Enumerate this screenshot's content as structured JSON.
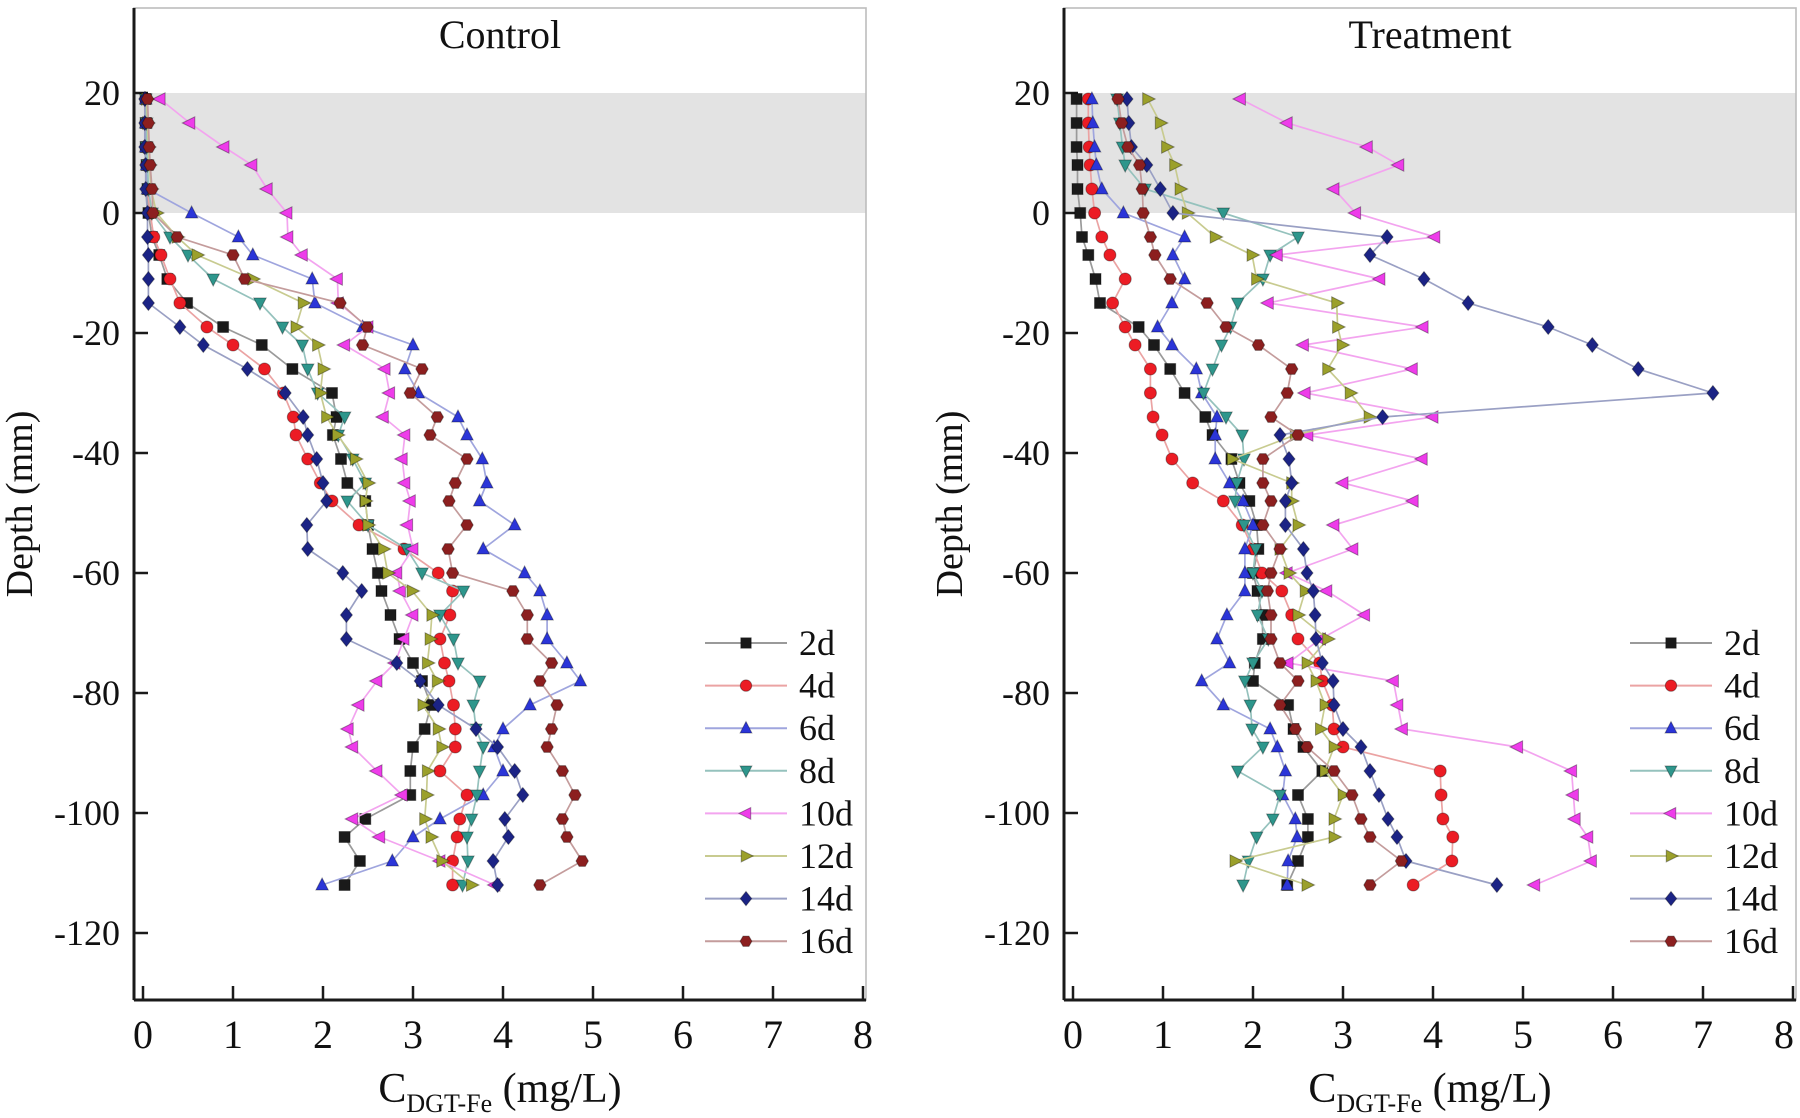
{
  "figure": {
    "background": "#ffffff",
    "band_color": "#e3e3e3",
    "spine_color": "#1a1a1a",
    "frame_color": "#bdbdbd",
    "text_color": "#111111"
  },
  "chart_data": [
    {
      "type": "line",
      "title": "Control",
      "ylabel": "Depth (mm)",
      "xlabel": {
        "main": "C",
        "sub": "DGT-Fe",
        "unit": " (mg/L)"
      },
      "xlim": [
        -0.1,
        8.1
      ],
      "ylim": [
        -131,
        34
      ],
      "x_ticks": [
        0,
        1,
        2,
        3,
        4,
        5,
        6,
        7,
        8
      ],
      "y_ticks": [
        20,
        0,
        -20,
        -40,
        -60,
        -80,
        -100,
        -120
      ],
      "grid": false,
      "legend_position": "lower right",
      "shaded_band": {
        "depth_from": 0,
        "depth_to": 20
      },
      "depths": [
        19,
        15,
        11,
        8,
        4,
        0,
        -4,
        -7,
        -11,
        -15,
        -19,
        -22,
        -26,
        -30,
        -34,
        -37,
        -41,
        -45,
        -48,
        -52,
        -56,
        -60,
        -63,
        -67,
        -71,
        -75,
        -78,
        -82,
        -86,
        -89,
        -93,
        -97,
        -101,
        -104,
        -108,
        -112
      ],
      "series": [
        {
          "name": "2d",
          "marker": "square",
          "color": "#1a1a1a",
          "line_color": "#9a9a9a",
          "values": [
            0.03,
            0.03,
            0.03,
            0.04,
            0.05,
            0.06,
            0.1,
            0.18,
            0.27,
            0.49,
            0.89,
            1.32,
            1.66,
            2.1,
            2.15,
            2.11,
            2.2,
            2.27,
            2.47,
            2.5,
            2.55,
            2.61,
            2.65,
            2.75,
            2.85,
            3.0,
            3.1,
            3.2,
            3.13,
            3.0,
            2.97,
            2.97,
            2.47,
            2.24,
            2.41,
            2.24
          ]
        },
        {
          "name": "4d",
          "marker": "circle",
          "color": "#ec1c24",
          "line_color": "#eba3a3",
          "values": [
            0.03,
            0.03,
            0.04,
            0.04,
            0.05,
            0.08,
            0.12,
            0.2,
            0.3,
            0.41,
            0.71,
            1.0,
            1.35,
            1.56,
            1.67,
            1.7,
            1.83,
            1.97,
            2.1,
            2.4,
            2.9,
            3.28,
            3.44,
            3.41,
            3.3,
            3.35,
            3.4,
            3.45,
            3.47,
            3.47,
            3.3,
            3.6,
            3.52,
            3.49,
            3.44,
            3.44
          ]
        },
        {
          "name": "6d",
          "marker": "triangle-up",
          "color": "#2b35d8",
          "line_color": "#9fa5de",
          "values": [
            0.03,
            0.03,
            0.03,
            0.04,
            0.05,
            0.54,
            1.06,
            1.22,
            1.88,
            1.91,
            2.44,
            3.0,
            2.91,
            3.06,
            3.5,
            3.6,
            3.77,
            3.82,
            3.74,
            4.13,
            3.78,
            4.24,
            4.41,
            4.49,
            4.49,
            4.71,
            4.86,
            4.3,
            4.0,
            3.9,
            4.0,
            3.78,
            3.3,
            3.0,
            2.77,
            1.99
          ]
        },
        {
          "name": "8d",
          "marker": "triangle-down",
          "color": "#2e968c",
          "line_color": "#95c2bd",
          "values": [
            0.03,
            0.04,
            0.04,
            0.05,
            0.06,
            0.1,
            0.3,
            0.5,
            0.78,
            1.3,
            1.55,
            1.77,
            1.83,
            1.94,
            2.24,
            2.17,
            2.33,
            2.47,
            2.27,
            2.5,
            2.93,
            3.1,
            3.56,
            3.3,
            3.45,
            3.5,
            3.74,
            3.67,
            3.7,
            3.78,
            3.74,
            3.71,
            3.65,
            3.6,
            3.61,
            3.55
          ]
        },
        {
          "name": "10d",
          "marker": "triangle-left",
          "color": "#ee3cea",
          "line_color": "#f3a4ef",
          "values": [
            0.19,
            0.52,
            0.9,
            1.21,
            1.38,
            1.6,
            1.61,
            1.77,
            2.16,
            2.17,
            2.5,
            2.24,
            2.69,
            2.74,
            2.67,
            2.91,
            2.88,
            2.91,
            2.97,
            2.94,
            3.0,
            2.82,
            2.86,
            3.0,
            2.9,
            2.8,
            2.6,
            2.4,
            2.28,
            2.33,
            2.6,
            2.88,
            2.33,
            2.63,
            3.3,
            3.91
          ]
        },
        {
          "name": "12d",
          "marker": "triangle-right",
          "color": "#9ba02b",
          "line_color": "#c8cb90",
          "values": [
            0.04,
            0.05,
            0.06,
            0.07,
            0.09,
            0.15,
            0.38,
            0.6,
            1.22,
            1.78,
            1.7,
            1.94,
            2.0,
            1.97,
            2.04,
            2.16,
            2.36,
            2.5,
            2.47,
            2.5,
            2.67,
            2.72,
            2.99,
            3.21,
            3.19,
            3.16,
            3.27,
            3.11,
            3.28,
            3.32,
            3.16,
            3.15,
            3.13,
            3.2,
            3.32,
            3.65
          ]
        },
        {
          "name": "14d",
          "marker": "diamond",
          "color": "#1b2385",
          "line_color": "#9aa0c4",
          "values": [
            0.02,
            0.02,
            0.02,
            0.03,
            0.03,
            0.05,
            0.05,
            0.06,
            0.06,
            0.06,
            0.41,
            0.67,
            1.16,
            1.58,
            1.78,
            1.83,
            1.93,
            2.0,
            2.04,
            1.82,
            1.83,
            2.22,
            2.43,
            2.26,
            2.26,
            2.82,
            3.08,
            3.28,
            3.7,
            3.94,
            4.13,
            4.22,
            4.02,
            4.06,
            3.89,
            3.94
          ]
        },
        {
          "name": "16d",
          "marker": "hexagon",
          "color": "#8c1f1f",
          "line_color": "#c49c9c",
          "values": [
            0.05,
            0.06,
            0.07,
            0.08,
            0.1,
            0.11,
            0.38,
            1.0,
            1.13,
            2.19,
            2.49,
            2.44,
            3.1,
            2.97,
            3.27,
            3.19,
            3.6,
            3.47,
            3.4,
            3.6,
            3.39,
            3.44,
            4.11,
            4.27,
            4.27,
            4.54,
            4.41,
            4.6,
            4.54,
            4.49,
            4.66,
            4.8,
            4.66,
            4.71,
            4.88,
            4.41
          ]
        }
      ]
    },
    {
      "type": "line",
      "title": "Treatment",
      "ylabel": "Depth (mm)",
      "xlabel": {
        "main": "C",
        "sub": "DGT-Fe",
        "unit": " (mg/L)"
      },
      "xlim": [
        -0.1,
        8.1
      ],
      "ylim": [
        -131,
        34
      ],
      "x_ticks": [
        0,
        1,
        2,
        3,
        4,
        5,
        6,
        7,
        8
      ],
      "y_ticks": [
        20,
        0,
        -20,
        -40,
        -60,
        -80,
        -100,
        -120
      ],
      "grid": false,
      "legend_position": "lower right",
      "shaded_band": {
        "depth_from": 0,
        "depth_to": 20
      },
      "depths": [
        19,
        15,
        11,
        8,
        4,
        0,
        -4,
        -7,
        -11,
        -15,
        -19,
        -22,
        -26,
        -30,
        -34,
        -37,
        -41,
        -45,
        -48,
        -52,
        -56,
        -60,
        -63,
        -67,
        -71,
        -75,
        -78,
        -82,
        -86,
        -89,
        -93,
        -97,
        -101,
        -104,
        -108,
        -112
      ],
      "series": [
        {
          "name": "2d",
          "marker": "square",
          "color": "#1a1a1a",
          "line_color": "#9a9a9a",
          "values": [
            0.04,
            0.04,
            0.04,
            0.05,
            0.05,
            0.08,
            0.1,
            0.17,
            0.25,
            0.3,
            0.73,
            0.9,
            1.08,
            1.24,
            1.47,
            1.55,
            1.76,
            1.85,
            1.96,
            2.04,
            2.06,
            2.0,
            2.05,
            2.1,
            2.11,
            2.02,
            2.0,
            2.39,
            2.45,
            2.56,
            2.77,
            2.5,
            2.61,
            2.61,
            2.5,
            2.38
          ]
        },
        {
          "name": "4d",
          "marker": "circle",
          "color": "#ec1c24",
          "line_color": "#eba3a3",
          "values": [
            0.17,
            0.17,
            0.18,
            0.19,
            0.21,
            0.24,
            0.32,
            0.41,
            0.58,
            0.44,
            0.58,
            0.69,
            0.86,
            0.86,
            0.89,
            0.99,
            1.1,
            1.33,
            1.67,
            1.88,
            2.0,
            2.1,
            2.32,
            2.43,
            2.5,
            2.74,
            2.77,
            2.88,
            2.9,
            3.0,
            4.08,
            4.09,
            4.11,
            4.22,
            4.21,
            3.78
          ]
        },
        {
          "name": "6d",
          "marker": "triangle-up",
          "color": "#2b35d8",
          "line_color": "#9fa5de",
          "values": [
            0.21,
            0.22,
            0.24,
            0.26,
            0.32,
            0.56,
            1.24,
            1.11,
            1.24,
            1.1,
            0.94,
            1.1,
            1.37,
            1.43,
            1.6,
            1.58,
            1.58,
            1.74,
            1.89,
            2.0,
            1.91,
            1.91,
            1.91,
            1.71,
            1.6,
            1.74,
            1.43,
            1.67,
            2.19,
            2.27,
            2.36,
            2.33,
            2.47,
            2.49,
            2.39,
            2.38
          ]
        },
        {
          "name": "8d",
          "marker": "triangle-down",
          "color": "#2e968c",
          "line_color": "#95c2bd",
          "values": [
            0.49,
            0.52,
            0.55,
            0.58,
            0.8,
            1.67,
            2.5,
            2.19,
            2.11,
            1.83,
            1.75,
            1.65,
            1.55,
            1.45,
            1.7,
            1.88,
            1.9,
            1.82,
            1.8,
            1.9,
            2.03,
            2.0,
            2.1,
            2.05,
            2.17,
            2.0,
            1.91,
            1.97,
            1.99,
            2.11,
            1.83,
            2.3,
            2.22,
            2.04,
            1.95,
            1.89
          ]
        },
        {
          "name": "10d",
          "marker": "triangle-left",
          "color": "#ee3cea",
          "line_color": "#f3a4ef",
          "values": [
            1.86,
            2.38,
            3.27,
            3.62,
            2.9,
            3.14,
            4.02,
            2.27,
            3.41,
            2.17,
            3.89,
            2.56,
            3.77,
            2.58,
            4.0,
            2.61,
            3.88,
            3.0,
            3.78,
            2.9,
            3.11,
            2.38,
            2.82,
            3.24,
            2.75,
            2.39,
            3.56,
            3.61,
            3.66,
            4.94,
            5.54,
            5.56,
            5.58,
            5.72,
            5.76,
            5.13
          ]
        },
        {
          "name": "12d",
          "marker": "triangle-right",
          "color": "#9ba02b",
          "line_color": "#c8cb90",
          "values": [
            0.83,
            0.97,
            1.04,
            1.13,
            1.19,
            1.27,
            1.58,
            1.99,
            2.04,
            2.93,
            2.94,
            2.99,
            2.83,
            3.08,
            3.29,
            2.47,
            1.77,
            2.43,
            2.43,
            2.5,
            2.3,
            2.4,
            2.58,
            2.5,
            2.83,
            2.6,
            2.7,
            2.8,
            2.75,
            2.9,
            2.8,
            3.0,
            2.9,
            2.9,
            1.8,
            2.6
          ]
        },
        {
          "name": "14d",
          "marker": "diamond",
          "color": "#1b2385",
          "line_color": "#9aa0c4",
          "values": [
            0.6,
            0.62,
            0.65,
            0.82,
            0.97,
            1.11,
            3.49,
            3.3,
            3.9,
            4.39,
            5.28,
            5.77,
            6.28,
            7.11,
            3.44,
            2.3,
            2.4,
            2.43,
            2.36,
            2.36,
            2.56,
            2.6,
            2.67,
            2.69,
            2.7,
            2.77,
            2.89,
            2.9,
            3.0,
            3.2,
            3.3,
            3.4,
            3.5,
            3.6,
            3.7,
            4.71
          ]
        },
        {
          "name": "16d",
          "marker": "hexagon",
          "color": "#8c1f1f",
          "line_color": "#c49c9c",
          "values": [
            0.5,
            0.54,
            0.61,
            0.74,
            0.77,
            0.78,
            0.86,
            0.91,
            1.08,
            1.49,
            1.7,
            2.06,
            2.43,
            2.38,
            2.2,
            2.5,
            2.11,
            2.11,
            2.2,
            2.11,
            2.3,
            2.2,
            2.16,
            2.2,
            2.2,
            2.3,
            2.5,
            2.3,
            2.47,
            2.6,
            2.9,
            3.1,
            3.2,
            3.3,
            3.65,
            3.3
          ]
        }
      ]
    }
  ]
}
